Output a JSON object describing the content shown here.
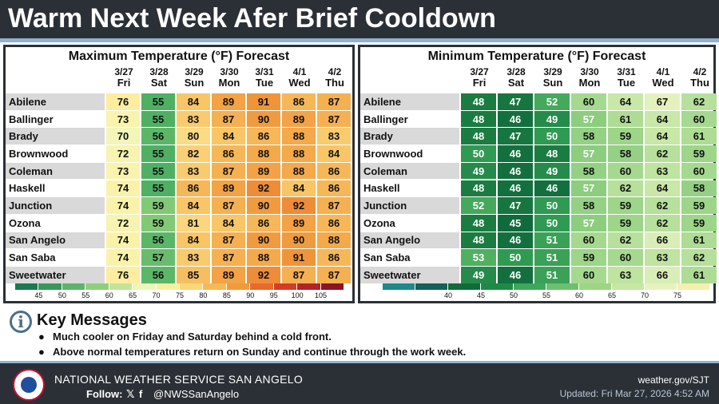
{
  "header": {
    "title": "Warm Next Week Afer Brief Cooldown"
  },
  "chart_data": [
    {
      "type": "table",
      "title": "Maximum Temperature (°F) Forecast",
      "dates": [
        "3/27",
        "3/28",
        "3/29",
        "3/30",
        "3/31",
        "4/1",
        "4/2"
      ],
      "days": [
        "Fri",
        "Sat",
        "Sun",
        "Mon",
        "Tue",
        "Wed",
        "Thu"
      ],
      "cities": [
        "Abilene",
        "Ballinger",
        "Brady",
        "Brownwood",
        "Coleman",
        "Haskell",
        "Junction",
        "Ozona",
        "San Angelo",
        "San Saba",
        "Sweetwater"
      ],
      "values": [
        [
          76,
          55,
          84,
          89,
          91,
          86,
          87
        ],
        [
          73,
          55,
          83,
          87,
          90,
          89,
          87
        ],
        [
          70,
          56,
          80,
          84,
          86,
          88,
          83
        ],
        [
          72,
          55,
          82,
          86,
          88,
          88,
          84
        ],
        [
          73,
          55,
          83,
          87,
          89,
          88,
          86
        ],
        [
          74,
          55,
          86,
          89,
          92,
          84,
          86
        ],
        [
          74,
          59,
          84,
          87,
          90,
          92,
          87
        ],
        [
          72,
          59,
          81,
          84,
          86,
          89,
          86
        ],
        [
          74,
          56,
          84,
          87,
          90,
          90,
          88
        ],
        [
          74,
          57,
          83,
          87,
          88,
          91,
          86
        ],
        [
          76,
          56,
          85,
          89,
          92,
          87,
          87
        ]
      ],
      "legend": {
        "labels": [
          "45",
          "50",
          "55",
          "60",
          "65",
          "70",
          "75",
          "80",
          "85",
          "90",
          "95",
          "100",
          "105"
        ],
        "colors": [
          "#1a7a4f",
          "#37985a",
          "#5cb46a",
          "#8fcf7a",
          "#c2e49a",
          "#eef5b8",
          "#fbeea0",
          "#f8d77c",
          "#f5b95a",
          "#f09a3e",
          "#e7692d",
          "#d63b2a",
          "#b4232a",
          "#8b1326"
        ]
      }
    },
    {
      "type": "table",
      "title": "Minimum Temperature (°F) Forecast",
      "dates": [
        "3/27",
        "3/28",
        "3/29",
        "3/30",
        "3/31",
        "4/1",
        "4/2"
      ],
      "days": [
        "Fri",
        "Sat",
        "Sun",
        "Mon",
        "Tue",
        "Wed",
        "Thu"
      ],
      "cities": [
        "Abilene",
        "Ballinger",
        "Brady",
        "Brownwood",
        "Coleman",
        "Haskell",
        "Junction",
        "Ozona",
        "San Angelo",
        "San Saba",
        "Sweetwater"
      ],
      "values": [
        [
          48,
          47,
          52,
          60,
          64,
          67,
          62
        ],
        [
          48,
          46,
          49,
          57,
          61,
          64,
          60
        ],
        [
          48,
          47,
          50,
          58,
          59,
          64,
          61
        ],
        [
          50,
          46,
          48,
          57,
          58,
          62,
          59
        ],
        [
          49,
          46,
          49,
          58,
          60,
          63,
          60
        ],
        [
          48,
          46,
          46,
          57,
          62,
          64,
          58
        ],
        [
          52,
          47,
          50,
          58,
          59,
          62,
          59
        ],
        [
          48,
          45,
          50,
          57,
          59,
          62,
          59
        ],
        [
          48,
          46,
          51,
          60,
          62,
          66,
          61
        ],
        [
          53,
          50,
          51,
          59,
          60,
          63,
          62
        ],
        [
          49,
          46,
          51,
          60,
          63,
          66,
          61
        ]
      ],
      "legend": {
        "labels": [
          "40",
          "45",
          "50",
          "55",
          "60",
          "65",
          "70",
          "75"
        ],
        "colors": [
          "#1c8a8a",
          "#14605a",
          "#0f6b3a",
          "#1f8a45",
          "#3ea85a",
          "#6cc070",
          "#9dd486",
          "#c7e7a4",
          "#e7f2c0",
          "#f6efb0"
        ]
      }
    }
  ],
  "key_messages": {
    "title": "Key Messages",
    "icon": "info-icon",
    "items": [
      "Much cooler on Friday and Saturday behind a cold front.",
      "Above normal temperatures return on Sunday and continue through the work week."
    ]
  },
  "footer": {
    "office": "NATIONAL WEATHER SERVICE SAN ANGELO",
    "follow_label": "Follow:",
    "social_x": "𝕏",
    "social_f": "f",
    "handle": "@NWSSanAngelo",
    "url": "weather.gov/SJT",
    "updated": "Updated: Fri Mar 27, 2026 4:52 AM"
  }
}
